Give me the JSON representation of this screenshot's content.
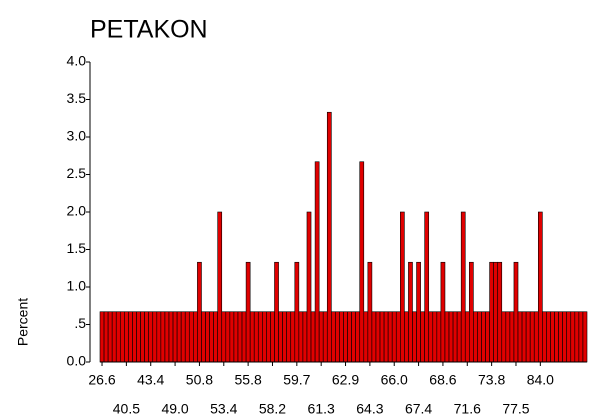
{
  "chart_data": {
    "type": "bar",
    "title": "PETAKON",
    "ylabel": "Percent",
    "color": "#e00000",
    "categories": [
      "26.6",
      null,
      null,
      null,
      null,
      null,
      "40.5",
      null,
      null,
      null,
      null,
      null,
      "43.4",
      null,
      null,
      null,
      null,
      null,
      "49.0",
      null,
      null,
      null,
      null,
      null,
      "50.8",
      null,
      null,
      null,
      null,
      null,
      "53.4",
      null,
      null,
      null,
      null,
      null,
      "55.8",
      null,
      null,
      null,
      null,
      null,
      "58.2",
      null,
      null,
      null,
      null,
      null,
      "59.7",
      null,
      null,
      null,
      null,
      null,
      "61.3",
      null,
      null,
      null,
      null,
      null,
      "62.9",
      null,
      null,
      null,
      null,
      null,
      "64.3",
      null,
      null,
      null,
      null,
      null,
      "66.0",
      null,
      null,
      null,
      null,
      null,
      "67.4",
      null,
      null,
      null,
      null,
      null,
      "68.6",
      null,
      null,
      null,
      null,
      null,
      "71.6",
      null,
      null,
      null,
      null,
      null,
      "73.8",
      null,
      null,
      null,
      null,
      null,
      "77.5",
      null,
      null,
      null,
      null,
      null,
      "84.0",
      null,
      null,
      null,
      null,
      null,
      null,
      null,
      null,
      null,
      null,
      null
    ],
    "values": [
      0.67,
      0.67,
      0.67,
      0.67,
      0.67,
      0.67,
      0.67,
      0.67,
      0.67,
      0.67,
      0.67,
      0.67,
      0.67,
      0.67,
      0.67,
      0.67,
      0.67,
      0.67,
      0.67,
      0.67,
      0.67,
      0.67,
      0.67,
      0.67,
      1.33,
      0.67,
      0.67,
      0.67,
      0.67,
      2.0,
      0.67,
      0.67,
      0.67,
      0.67,
      0.67,
      0.67,
      1.33,
      0.67,
      0.67,
      0.67,
      0.67,
      0.67,
      0.67,
      1.33,
      0.67,
      0.67,
      0.67,
      0.67,
      1.33,
      0.67,
      0.67,
      2.0,
      0.67,
      2.67,
      0.67,
      0.67,
      3.33,
      0.67,
      0.67,
      0.67,
      0.67,
      0.67,
      0.67,
      0.67,
      2.67,
      0.67,
      1.33,
      0.67,
      0.67,
      0.67,
      0.67,
      0.67,
      0.67,
      0.67,
      2.0,
      0.67,
      1.33,
      0.67,
      1.33,
      0.67,
      2.0,
      0.67,
      0.67,
      0.67,
      1.33,
      0.67,
      0.67,
      0.67,
      0.67,
      2.0,
      0.67,
      1.33,
      0.67,
      0.67,
      0.67,
      0.67,
      1.33,
      1.33,
      1.33,
      0.67,
      0.67,
      0.67,
      1.33,
      0.67,
      0.67,
      0.67,
      0.67,
      0.67,
      2.0,
      0.67,
      0.67,
      0.67,
      0.67,
      0.67,
      0.67,
      0.67,
      0.67,
      0.67,
      0.67,
      0.67
    ],
    "ylim": [
      0,
      4
    ],
    "yticks": [
      {
        "value": 0,
        "label": "0.0"
      },
      {
        "value": 0.5,
        "label": ".5"
      },
      {
        "value": 1,
        "label": "1.0"
      },
      1.5,
      {
        "value": 2,
        "label": "2.0"
      },
      2.5,
      {
        "value": 3,
        "label": "3.0"
      },
      3.5,
      {
        "value": 4,
        "label": "4.0"
      }
    ]
  }
}
